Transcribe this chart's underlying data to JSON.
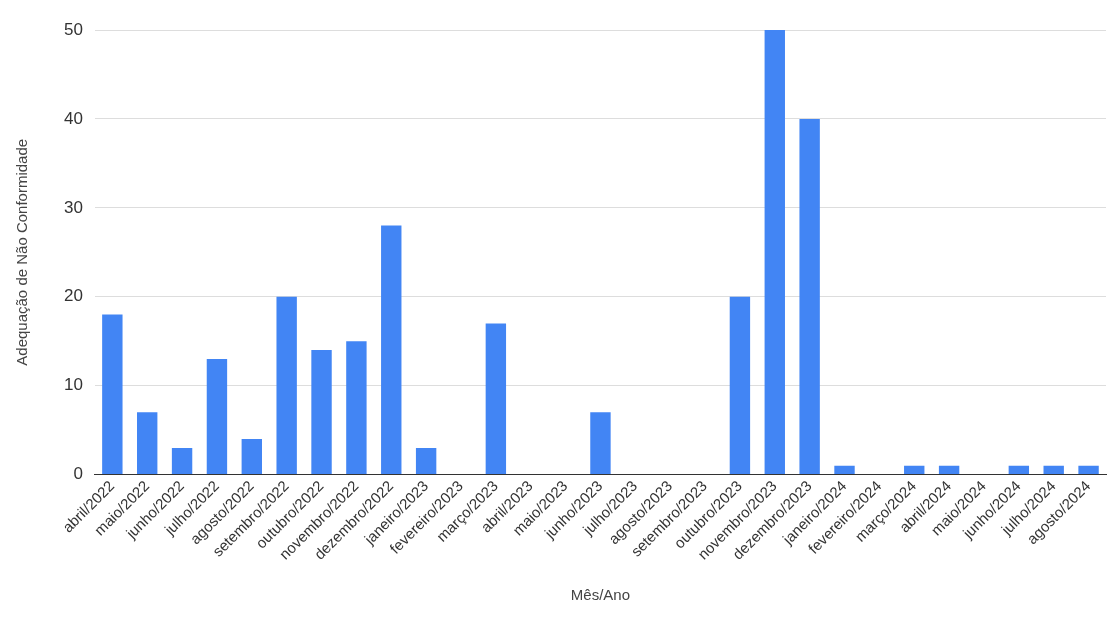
{
  "chart_data": {
    "type": "bar",
    "xlabel": "Mês/Ano",
    "ylabel": "Adequação de Não Conformidade",
    "categories": [
      "abril/2022",
      "maio/2022",
      "junho/2022",
      "julho/2022",
      "agosto/2022",
      "setembro/2022",
      "outubro/2022",
      "novembro/2022",
      "dezembro/2022",
      "janeiro/2023",
      "fevereiro/2023",
      "março/2023",
      "abril/2023",
      "maio/2023",
      "junho/2023",
      "julho/2023",
      "agosto/2023",
      "setembro/2023",
      "outubro/2023",
      "novembro/2023",
      "dezembro/2023",
      "janeiro/2024",
      "fevereiro/2024",
      "março/2024",
      "abril/2024",
      "maio/2024",
      "junho/2024",
      "julho/2024",
      "agosto/2024"
    ],
    "values": [
      18,
      7,
      3,
      13,
      4,
      20,
      14,
      15,
      28,
      3,
      0,
      17,
      0,
      0,
      7,
      0,
      0,
      0,
      20,
      50,
      40,
      1,
      0,
      1,
      1,
      0,
      1,
      1,
      1
    ],
    "color": "#4285f4",
    "ylim": [
      0,
      50
    ],
    "yticks": [
      0,
      10,
      20,
      30,
      40,
      50
    ],
    "grid": "y"
  }
}
